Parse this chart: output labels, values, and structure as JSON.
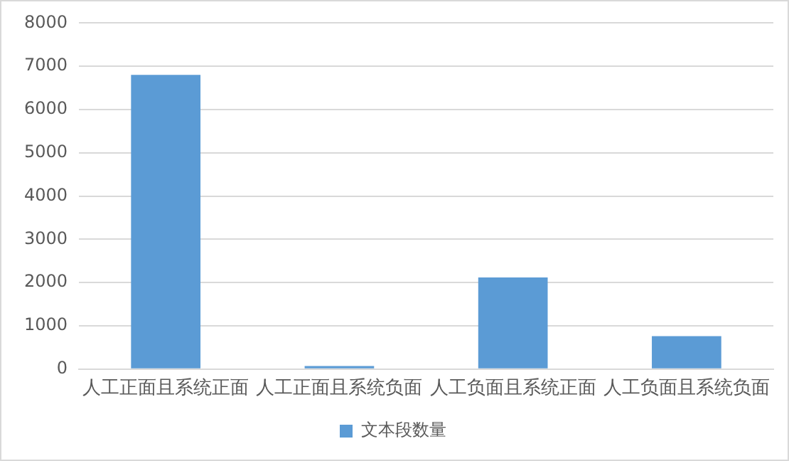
{
  "chart_data": {
    "type": "bar",
    "categories": [
      "人工正面且系统正面",
      "人工正面且系统负面",
      "人工负面且系统正面",
      "人工负面且系统负面"
    ],
    "series": [
      {
        "name": "文本段数量",
        "color": "#5b9bd5",
        "values": [
          6800,
          70,
          2120,
          760
        ]
      }
    ],
    "ylim": [
      0,
      8000
    ],
    "yticks": [
      0,
      1000,
      2000,
      3000,
      4000,
      5000,
      6000,
      7000,
      8000
    ],
    "grid": "y",
    "legend": "bottom"
  }
}
